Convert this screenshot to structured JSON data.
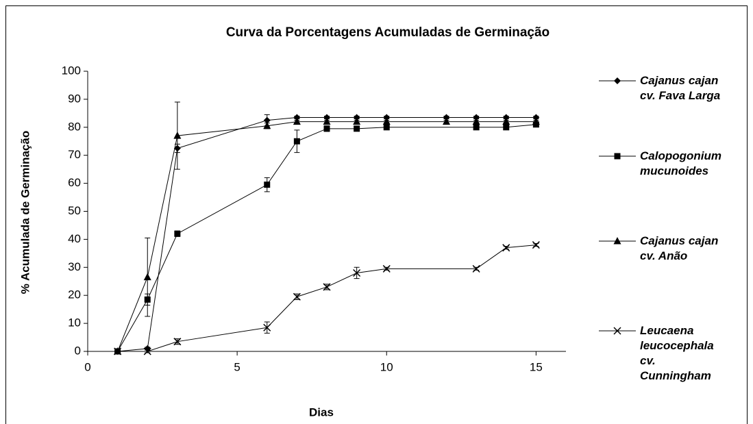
{
  "chart_data": {
    "type": "line",
    "title": "Curva da Porcentagens Acumuladas de Germinação",
    "x_label": "Dias",
    "y_label": "% Acumulada de Germinação",
    "xlim": [
      0,
      16
    ],
    "xticks": [
      0,
      5,
      10,
      15
    ],
    "ylim": [
      0,
      100
    ],
    "yticks": [
      0,
      10,
      20,
      30,
      40,
      50,
      60,
      70,
      80,
      90,
      100
    ],
    "series": [
      {
        "name": "Cajanus cajan\ncv. Fava Larga",
        "color": "#000000",
        "marker": "diamond",
        "x": [
          1,
          2,
          3,
          6,
          7,
          8,
          9,
          10,
          12,
          13,
          14,
          15
        ],
        "values": [
          0,
          1,
          72.5,
          82.5,
          83.5,
          83.5,
          83.5,
          83.5,
          83.5,
          83.5,
          83.5,
          83.5
        ],
        "errors": [
          0,
          0.5,
          1.5,
          2,
          0.5,
          0.5,
          0.5,
          0.5,
          0.5,
          0.5,
          0.5,
          0.5
        ]
      },
      {
        "name": "Calopogonium\nmucunoides",
        "color": "#000000",
        "marker": "square",
        "x": [
          1,
          2,
          3,
          6,
          7,
          8,
          9,
          10,
          13,
          14,
          15
        ],
        "values": [
          0,
          18.5,
          42,
          59.5,
          75,
          79.5,
          79.5,
          80,
          80,
          80,
          81
        ],
        "errors": [
          0,
          2,
          1,
          2.5,
          4,
          1,
          0.5,
          0.5,
          0.5,
          0.5,
          0.5
        ]
      },
      {
        "name": "Cajanus cajan\ncv. Anão",
        "color": "#000000",
        "marker": "triangle",
        "x": [
          1,
          2,
          3,
          6,
          7,
          8,
          9,
          10,
          12,
          13,
          14,
          15
        ],
        "values": [
          0,
          26.5,
          77,
          80.5,
          82,
          82,
          82,
          82,
          82,
          82,
          82,
          82
        ],
        "errors": [
          0,
          14,
          12,
          1,
          0.5,
          0.5,
          0.5,
          0.5,
          0.5,
          0.5,
          0.5,
          0.5
        ]
      },
      {
        "name": "Leucaena\nleucocephala\ncv.\nCunningham",
        "color": "#000000",
        "marker": "cross",
        "x": [
          1,
          2,
          3,
          6,
          7,
          8,
          9,
          10,
          13,
          14,
          15
        ],
        "values": [
          0,
          0,
          3.5,
          8.5,
          19.5,
          23,
          28,
          29.5,
          29.5,
          37,
          38
        ],
        "errors": [
          0,
          0.5,
          1,
          2,
          1,
          1,
          2,
          0.5,
          0.5,
          0.5,
          0.5
        ]
      }
    ]
  }
}
